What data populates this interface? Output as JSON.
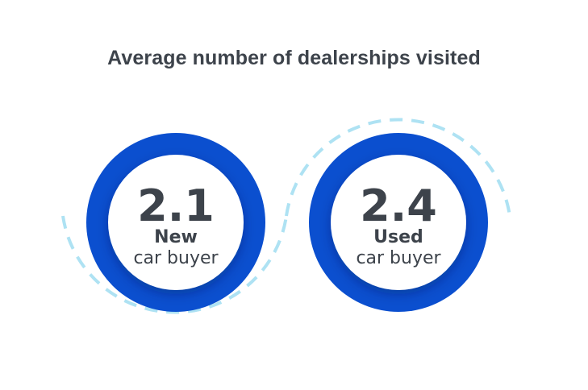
{
  "chart_data": {
    "type": "bar",
    "title": "Average number of dealerships visited",
    "categories": [
      "New car buyer",
      "Used car buyer"
    ],
    "values": [
      2.1,
      2.4
    ],
    "display_values": [
      "2.1",
      "2.4"
    ],
    "label_strong": [
      "New",
      "Used"
    ],
    "label_light": [
      "car buyer",
      "car buyer"
    ],
    "colors": {
      "ring": "#0b4fcf",
      "inner": "#ffffff",
      "dash": "#aee2f3",
      "text": "#3d434b"
    }
  }
}
